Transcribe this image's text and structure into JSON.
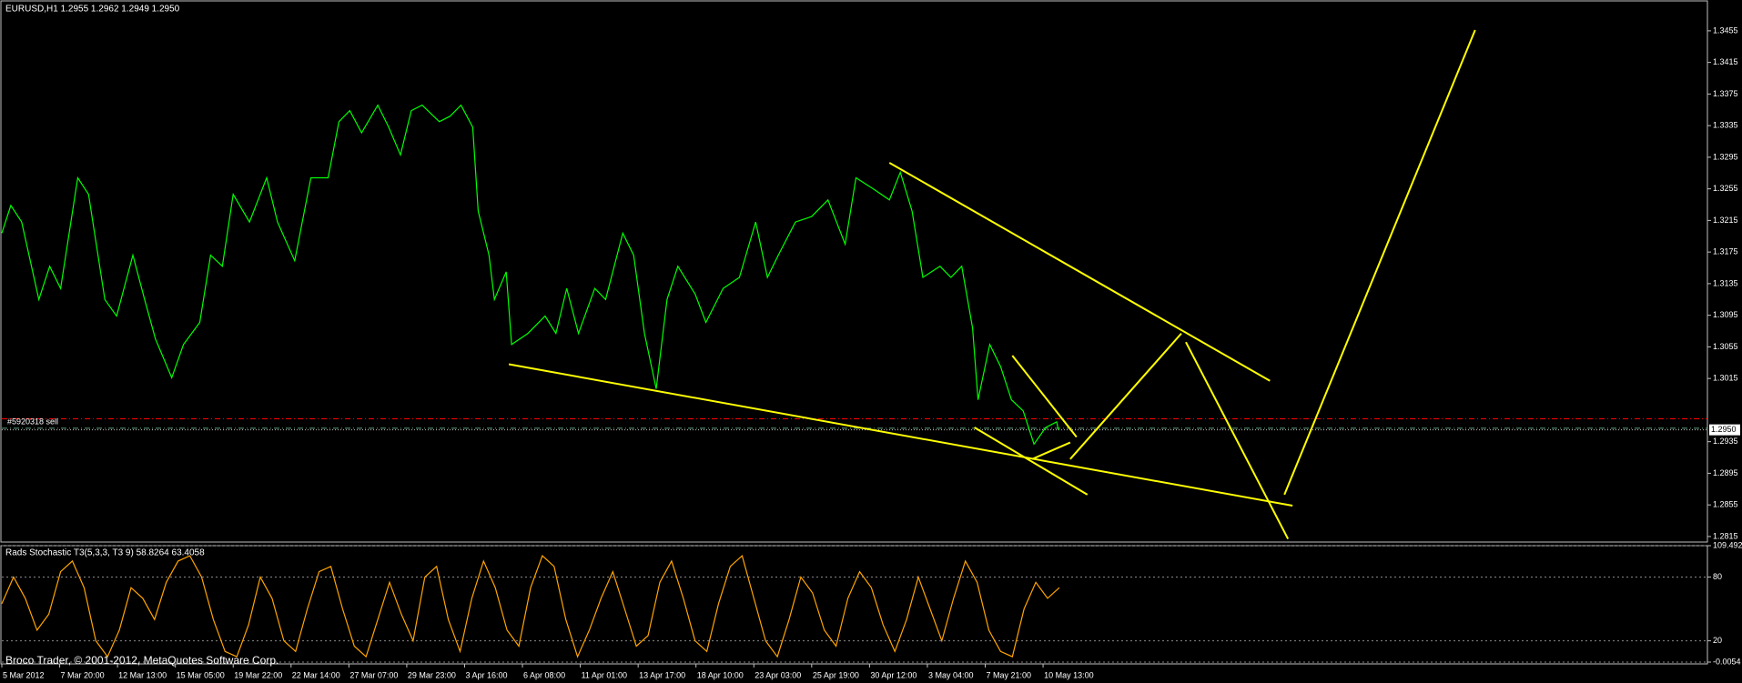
{
  "chart_data": [
    {
      "type": "line",
      "title": "EURUSD,H1  1.2955 1.2962 1.2949 1.2950",
      "color": "#00ff00",
      "x": [
        0,
        10,
        22,
        41,
        53,
        65,
        84,
        96,
        114,
        127,
        145,
        158,
        170,
        188,
        201,
        219,
        231,
        244,
        256,
        274,
        293,
        305,
        324,
        342,
        361,
        373,
        385,
        398,
        416,
        428,
        441,
        453,
        465,
        484,
        496,
        508,
        521,
        527,
        539,
        545,
        558,
        564,
        582,
        601,
        613,
        625,
        638,
        656,
        668,
        687,
        699,
        711,
        724,
        736,
        748,
        767,
        779,
        798,
        816,
        834,
        847,
        859,
        878,
        896,
        914,
        933,
        945,
        964,
        982,
        994,
        1007,
        1019,
        1038,
        1050,
        1062,
        1074,
        1080,
        1093,
        1105,
        1117,
        1130,
        1142,
        1155,
        1167,
        1169
      ],
      "values": [
        1.3199,
        1.3234,
        1.3213,
        1.3115,
        1.3157,
        1.3129,
        1.3269,
        1.3248,
        1.3115,
        1.3094,
        1.3171,
        1.3115,
        1.3065,
        1.3016,
        1.3058,
        1.3086,
        1.3171,
        1.3157,
        1.3248,
        1.3213,
        1.3269,
        1.3213,
        1.3164,
        1.3269,
        1.3269,
        1.334,
        1.3354,
        1.3326,
        1.3361,
        1.3333,
        1.3298,
        1.3354,
        1.3361,
        1.334,
        1.3347,
        1.3361,
        1.3333,
        1.3227,
        1.3171,
        1.3115,
        1.315,
        1.3058,
        1.3072,
        1.3094,
        1.3072,
        1.3129,
        1.3072,
        1.3129,
        1.3115,
        1.3199,
        1.3171,
        1.3072,
        1.3002,
        1.3115,
        1.3157,
        1.3122,
        1.3086,
        1.3129,
        1.3143,
        1.3213,
        1.3143,
        1.3171,
        1.3213,
        1.322,
        1.3241,
        1.3185,
        1.3269,
        1.3255,
        1.3241,
        1.3276,
        1.3227,
        1.3143,
        1.3157,
        1.3143,
        1.3157,
        1.3079,
        1.2988,
        1.3058,
        1.303,
        1.2988,
        1.2974,
        1.2932,
        1.2953,
        1.296,
        1.295
      ],
      "xlim": [
        0,
        1887
      ],
      "ylim": [
        1.2808,
        1.3494
      ],
      "yticks": [
        1.3455,
        1.3415,
        1.3375,
        1.3335,
        1.3295,
        1.3255,
        1.3215,
        1.3175,
        1.3135,
        1.3095,
        1.3055,
        1.3015,
        1.2935,
        1.2895,
        1.2855,
        1.2815
      ],
      "xticks": [
        {
          "value": 0,
          "label": "5 Mar 2012"
        },
        {
          "value": 64,
          "label": "7 Mar 20:00"
        },
        {
          "value": 128,
          "label": "12 Mar 13:00"
        },
        {
          "value": 192,
          "label": "15 Mar 05:00"
        },
        {
          "value": 256,
          "label": "19 Mar 22:00"
        },
        {
          "value": 320,
          "label": "22 Mar 14:00"
        },
        {
          "value": 384,
          "label": "27 Mar 07:00"
        },
        {
          "value": 448,
          "label": "29 Mar 23:00"
        },
        {
          "value": 512,
          "label": "3 Apr 16:00"
        },
        {
          "value": 576,
          "label": "6 Apr 08:00"
        },
        {
          "value": 640,
          "label": "11 Apr 01:00"
        },
        {
          "value": 704,
          "label": "13 Apr 17:00"
        },
        {
          "value": 768,
          "label": "18 Apr 10:00"
        },
        {
          "value": 832,
          "label": "23 Apr 03:00"
        },
        {
          "value": 896,
          "label": "25 Apr 19:00"
        },
        {
          "value": 960,
          "label": "30 Apr 12:00"
        },
        {
          "value": 1024,
          "label": "3 May 04:00"
        },
        {
          "value": 1088,
          "label": "7 May 21:00"
        },
        {
          "value": 1152,
          "label": "10 May 13:00"
        }
      ],
      "trendline_color": "#ffff00",
      "trendlines": [
        {
          "x": [
            982,
            1403
          ],
          "y": [
            1.3288,
            1.3012
          ]
        },
        {
          "x": [
            561,
            1428
          ],
          "y": [
            1.3033,
            1.2854
          ]
        },
        {
          "x": [
            1076,
            1201
          ],
          "y": [
            1.2953,
            1.2868
          ]
        },
        {
          "x": [
            1118,
            1189
          ],
          "y": [
            1.3044,
            1.2941
          ]
        },
        {
          "x": [
            1140,
            1182
          ],
          "y": [
            1.2913,
            1.2934
          ]
        },
        {
          "x": [
            1182,
            1305
          ],
          "y": [
            1.2913,
            1.3072
          ]
        },
        {
          "x": [
            1310,
            1423
          ],
          "y": [
            1.3061,
            1.2812
          ]
        },
        {
          "x": [
            1419,
            1630
          ],
          "y": [
            1.2868,
            1.3456
          ]
        }
      ],
      "levels": [
        {
          "value": 1.2964,
          "color": "#ff0000"
        },
        {
          "value": 1.2952,
          "color": "#5f9f7f",
          "name": "#5920318 sell"
        }
      ],
      "last_price": {
        "value": 1.295,
        "label": "1.2950"
      }
    },
    {
      "type": "line",
      "title": "Rads Stochastic T3(5,3,3, T3 9) 58.8264 63.4058",
      "color": "#ffa500",
      "x": [
        0,
        13,
        26,
        39,
        52,
        65,
        78,
        91,
        104,
        117,
        130,
        143,
        156,
        169,
        182,
        195,
        208,
        221,
        234,
        247,
        260,
        273,
        286,
        299,
        312,
        325,
        338,
        351,
        364,
        377,
        390,
        403,
        416,
        429,
        442,
        455,
        468,
        481,
        494,
        507,
        520,
        533,
        546,
        559,
        572,
        585,
        598,
        611,
        624,
        637,
        650,
        663,
        676,
        689,
        702,
        715,
        728,
        741,
        754,
        767,
        780,
        793,
        806,
        819,
        832,
        845,
        858,
        871,
        884,
        897,
        910,
        923,
        936,
        949,
        962,
        975,
        988,
        1001,
        1014,
        1027,
        1040,
        1053,
        1066,
        1079,
        1092,
        1105,
        1118,
        1131,
        1144,
        1157,
        1170
      ],
      "values": [
        55,
        80,
        60,
        30,
        45,
        85,
        95,
        70,
        20,
        5,
        30,
        70,
        60,
        40,
        75,
        95,
        100,
        80,
        40,
        10,
        5,
        35,
        80,
        60,
        20,
        10,
        50,
        85,
        90,
        50,
        15,
        5,
        40,
        75,
        45,
        20,
        80,
        90,
        40,
        10,
        60,
        95,
        70,
        30,
        15,
        70,
        100,
        90,
        40,
        5,
        30,
        60,
        85,
        50,
        15,
        25,
        75,
        95,
        60,
        20,
        10,
        55,
        90,
        100,
        60,
        20,
        5,
        40,
        80,
        65,
        30,
        15,
        60,
        85,
        70,
        35,
        10,
        40,
        80,
        50,
        20,
        60,
        95,
        75,
        30,
        10,
        5,
        50,
        75,
        60,
        70
      ],
      "xlim": [
        0,
        1887
      ],
      "ylim": [
        -0.0054,
        109.492
      ],
      "yticks": [
        109.492,
        80,
        20,
        -0.0054
      ],
      "grid": true
    }
  ],
  "footer": "Broco Trader, © 2001-2012, MetaQuotes Software Corp."
}
